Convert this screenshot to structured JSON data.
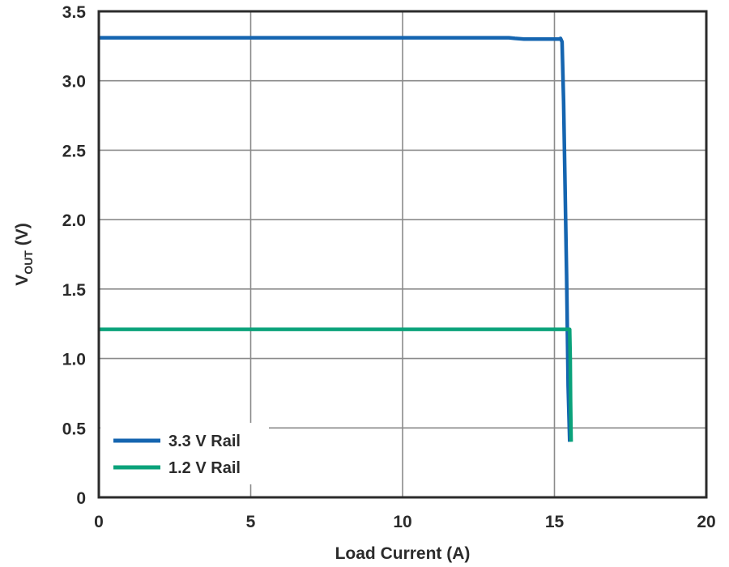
{
  "chart_data": {
    "type": "line",
    "title": "",
    "xlabel": "Load Current (A)",
    "ylabel": {
      "main": "V",
      "subscript": "OUT",
      "unit": " (V)"
    },
    "xlim": [
      0,
      20
    ],
    "ylim": [
      0,
      3.5
    ],
    "xticks": [
      "0",
      "5",
      "10",
      "15",
      "20"
    ],
    "yticks": [
      "0",
      "0.5",
      "1.0",
      "1.5",
      "2.0",
      "2.5",
      "3.0",
      "3.5"
    ],
    "grid": true,
    "legend_position": "bottom-left",
    "series": [
      {
        "name": "3.3 V Rail",
        "color": "#1565b0",
        "points": [
          [
            0,
            3.31
          ],
          [
            5,
            3.31
          ],
          [
            10,
            3.31
          ],
          [
            13.5,
            3.31
          ],
          [
            13.7,
            3.305
          ],
          [
            14.0,
            3.3
          ],
          [
            15.15,
            3.3
          ],
          [
            15.2,
            3.305
          ],
          [
            15.25,
            3.28
          ],
          [
            15.3,
            2.85
          ],
          [
            15.4,
            1.6
          ],
          [
            15.45,
            0.8
          ],
          [
            15.5,
            0.4
          ]
        ]
      },
      {
        "name": "1.2 V Rail",
        "color": "#0aa27a",
        "points": [
          [
            0,
            1.21
          ],
          [
            5,
            1.21
          ],
          [
            10,
            1.21
          ],
          [
            15.0,
            1.21
          ],
          [
            15.5,
            1.21
          ],
          [
            15.52,
            1.0
          ],
          [
            15.53,
            0.7
          ],
          [
            15.55,
            0.4
          ]
        ]
      }
    ]
  }
}
